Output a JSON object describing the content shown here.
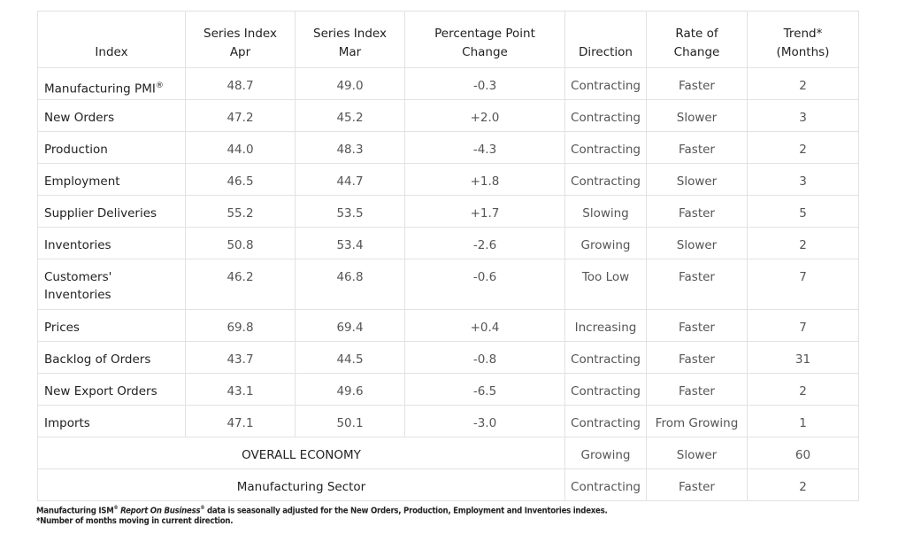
{
  "headers": [
    {
      "l1": "",
      "l2": "Index"
    },
    {
      "l1": "Series Index",
      "l2": "Apr"
    },
    {
      "l1": "Series Index",
      "l2": "Mar"
    },
    {
      "l1": "Percentage Point",
      "l2": "Change"
    },
    {
      "l1": "",
      "l2": "Direction"
    },
    {
      "l1": "Rate of",
      "l2": "Change"
    },
    {
      "l1": "Trend*",
      "l2": "(Months)"
    }
  ],
  "rows": [
    {
      "name": "Manufacturing PMI",
      "sup": "®",
      "apr": "48.7",
      "mar": "49.0",
      "change": "-0.3",
      "direction": "Contracting",
      "rate": "Faster",
      "trend": "2"
    },
    {
      "name": "New Orders",
      "apr": "47.2",
      "mar": "45.2",
      "change": "+2.0",
      "direction": "Contracting",
      "rate": "Slower",
      "trend": "3"
    },
    {
      "name": "Production",
      "apr": "44.0",
      "mar": "48.3",
      "change": "-4.3",
      "direction": "Contracting",
      "rate": "Faster",
      "trend": "2"
    },
    {
      "name": "Employment",
      "apr": "46.5",
      "mar": "44.7",
      "change": "+1.8",
      "direction": "Contracting",
      "rate": "Slower",
      "trend": "3"
    },
    {
      "name": "Supplier Deliveries",
      "apr": "55.2",
      "mar": "53.5",
      "change": "+1.7",
      "direction": "Slowing",
      "rate": "Faster",
      "trend": "5"
    },
    {
      "name": "Inventories",
      "apr": "50.8",
      "mar": "53.4",
      "change": "-2.6",
      "direction": "Growing",
      "rate": "Slower",
      "trend": "2"
    },
    {
      "name": "Customers'",
      "name2": "Inventories",
      "apr": "46.2",
      "mar": "46.8",
      "change": "-0.6",
      "direction": "Too Low",
      "rate": "Faster",
      "trend": "7"
    },
    {
      "name": "Prices",
      "apr": "69.8",
      "mar": "69.4",
      "change": "+0.4",
      "direction": "Increasing",
      "rate": "Faster",
      "trend": "7"
    },
    {
      "name": "Backlog of Orders",
      "apr": "43.7",
      "mar": "44.5",
      "change": "-0.8",
      "direction": "Contracting",
      "rate": "Faster",
      "trend": "31"
    },
    {
      "name": "New Export Orders",
      "apr": "43.1",
      "mar": "49.6",
      "change": "-6.5",
      "direction": "Contracting",
      "rate": "Faster",
      "trend": "2"
    },
    {
      "name": "Imports",
      "apr": "47.1",
      "mar": "50.1",
      "change": "-3.0",
      "direction": "Contracting",
      "rate": "From Growing",
      "trend": "1"
    }
  ],
  "summary": [
    {
      "label": "OVERALL ECONOMY",
      "direction": "Growing",
      "rate": "Slower",
      "trend": "60"
    },
    {
      "label": "Manufacturing Sector",
      "direction": "Contracting",
      "rate": "Faster",
      "trend": "2"
    }
  ],
  "footnote": {
    "p1": "Manufacturing ISM",
    "sup1": "®",
    "p2": "Report On Business",
    "sup2": "®",
    "p3": " data is seasonally adjusted for the New Orders, Production, Employment and Inventories indexes.",
    "line2": "*Number of months moving in current direction."
  }
}
